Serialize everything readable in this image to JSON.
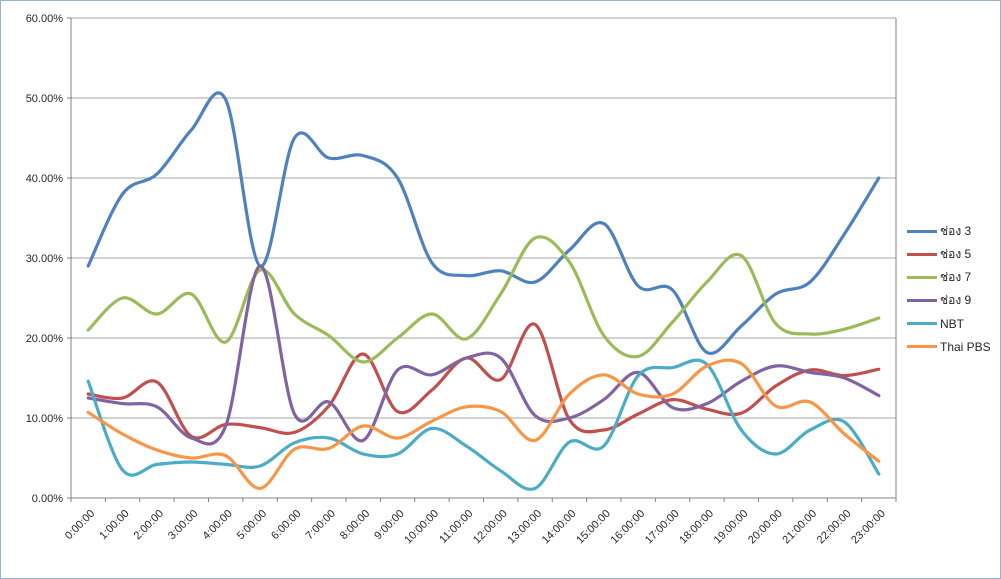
{
  "chart_data": {
    "type": "line",
    "title": "",
    "xlabel": "",
    "ylabel": "",
    "smooth": true,
    "grid": true,
    "legend_position": "right",
    "ylim": [
      0,
      60
    ],
    "y_tick_step": 10,
    "y_tick_labels": [
      "0.00%",
      "10.00%",
      "20.00%",
      "30.00%",
      "40.00%",
      "50.00%",
      "60.00%"
    ],
    "categories": [
      "0:00:00",
      "1:00:00",
      "2:00:00",
      "3:00:00",
      "4:00:00",
      "5:00:00",
      "6:00:00",
      "7:00:00",
      "8:00:00",
      "9:00:00",
      "10:00:00",
      "11:00:00",
      "12:00:00",
      "13:00:00",
      "14:00:00",
      "15:00:00",
      "16:00:00",
      "17:00:00",
      "18:00:00",
      "19:00:00",
      "20:00:00",
      "21:00:00",
      "22:00:00",
      "23:00:00"
    ],
    "series": [
      {
        "name": "ช่อง 3",
        "color": "#4F81BD",
        "values": [
          29,
          38,
          40.5,
          46,
          49.8,
          29,
          45,
          42.5,
          42.8,
          40,
          29.4,
          27.8,
          28.4,
          27,
          31,
          34.3,
          26.5,
          26,
          18.2,
          21.5,
          25.5,
          27,
          33,
          40
        ]
      },
      {
        "name": "ช่อง 5",
        "color": "#C0504D",
        "values": [
          13,
          12.5,
          14.5,
          7.7,
          9.2,
          8.8,
          8.2,
          11.5,
          18,
          10.8,
          13.5,
          17.5,
          14.8,
          21.7,
          9.8,
          8.5,
          10.5,
          12.3,
          11.1,
          10.6,
          14,
          16,
          15.3,
          16.1
        ]
      },
      {
        "name": "ช่อง 7",
        "color": "#9BBB59",
        "values": [
          21,
          25,
          23,
          25.5,
          19.5,
          28.5,
          23,
          20.3,
          17,
          20,
          23,
          19.9,
          25.5,
          32.5,
          29.5,
          20.3,
          17.7,
          22,
          27,
          30.3,
          21.8,
          20.5,
          21.1,
          22.5
        ]
      },
      {
        "name": "ช่อง 9",
        "color": "#8064A2",
        "values": [
          12.5,
          11.8,
          11.4,
          7.5,
          9,
          29,
          10.5,
          12,
          7.2,
          16,
          15.4,
          17.5,
          17.5,
          10.3,
          10,
          12.3,
          15.7,
          11.3,
          11.8,
          14.6,
          16.5,
          15.7,
          15,
          12.8
        ]
      },
      {
        "name": "NBT",
        "color": "#4BACC6",
        "values": [
          14.6,
          3.5,
          4.2,
          4.5,
          4.2,
          4,
          6.9,
          7.5,
          5.5,
          5.5,
          8.7,
          6.5,
          3.4,
          1.2,
          7,
          6.5,
          15.3,
          16.3,
          16.7,
          8.5,
          5.5,
          8.5,
          9.5,
          3
        ]
      },
      {
        "name": "Thai PBS",
        "color": "#F79646",
        "values": [
          10.7,
          8,
          6,
          5,
          5.3,
          1.2,
          6.1,
          6.2,
          9,
          7.5,
          9.6,
          11.4,
          10.8,
          7.2,
          13,
          15.4,
          13,
          13,
          16.5,
          16.8,
          11.5,
          12,
          8,
          4.6
        ]
      }
    ]
  },
  "colors": {
    "gridline": "#A6A6A6",
    "axis": "#808080",
    "frame_border": "#95B3D7",
    "tick_text": "#262626",
    "background": "#FFFFFF"
  }
}
